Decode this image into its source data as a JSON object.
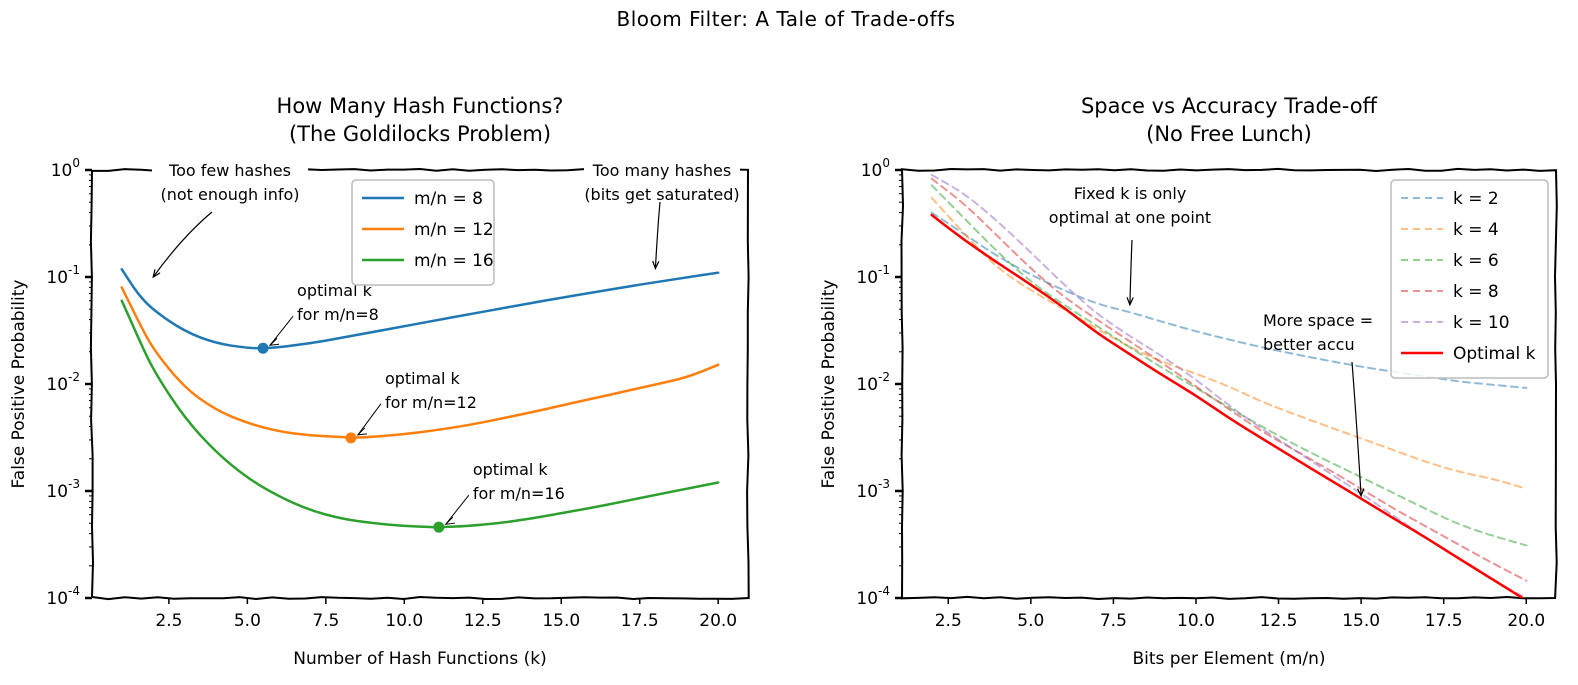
{
  "suptitle": "Bloom Filter: A Tale of Trade-offs",
  "colors": {
    "blue": "#1f77b4",
    "orange": "#ff7f0e",
    "green": "#2ca02c",
    "red": "#ff0000",
    "purple": "#9467bd",
    "k2": "#1f77b4",
    "k4": "#ff7f0e",
    "k6": "#2ca02c",
    "k8": "#d62728",
    "k10": "#9467bd"
  },
  "chart_data": [
    {
      "type": "line",
      "title_line1": "How Many Hash Functions?",
      "title_line2": "(The Goldilocks Problem)",
      "xlabel": "Number of Hash Functions (k)",
      "ylabel": "False Positive Probability",
      "yscale": "log",
      "xlim": [
        0.05,
        20.95
      ],
      "ylim": [
        0.0001,
        1
      ],
      "xticks": [
        2.5,
        5.0,
        7.5,
        10.0,
        12.5,
        15.0,
        17.5,
        20.0
      ],
      "xtick_labels": [
        "2.5",
        "5.0",
        "7.5",
        "10.0",
        "12.5",
        "15.0",
        "17.5",
        "20.0"
      ],
      "yticks": [
        0.0001,
        0.001,
        0.01,
        0.1,
        1
      ],
      "ytick_labels": [
        {
          "base": "10",
          "exp": "-4"
        },
        {
          "base": "10",
          "exp": "-3"
        },
        {
          "base": "10",
          "exp": "-2"
        },
        {
          "base": "10",
          "exp": "-1"
        },
        {
          "base": "10",
          "exp": "0"
        }
      ],
      "legend_position": "upper-center",
      "series": [
        {
          "name": "m/n = 8",
          "color": "#1f77b4",
          "x": [
            1,
            1.5,
            2,
            3,
            4,
            5,
            5.5,
            6,
            7,
            8,
            9,
            10,
            11,
            12,
            13,
            14,
            15,
            16,
            17,
            18,
            19,
            20
          ],
          "y": [
            0.118,
            0.07,
            0.049,
            0.031,
            0.024,
            0.0217,
            0.0216,
            0.022,
            0.024,
            0.027,
            0.0306,
            0.0347,
            0.0393,
            0.0445,
            0.0503,
            0.0568,
            0.0639,
            0.0717,
            0.0802,
            0.0894,
            0.0992,
            0.1098
          ]
        },
        {
          "name": "m/n = 12",
          "color": "#ff7f0e",
          "x": [
            1,
            1.5,
            2,
            3,
            4,
            5,
            6,
            7,
            8,
            8.3,
            9,
            10,
            11,
            12,
            13,
            14,
            15,
            16,
            17,
            18,
            19,
            20
          ],
          "y": [
            0.08,
            0.04,
            0.021,
            0.0092,
            0.0057,
            0.0043,
            0.0036,
            0.0033,
            0.0032,
            0.00314,
            0.0032,
            0.0034,
            0.0037,
            0.0041,
            0.0047,
            0.0054,
            0.0063,
            0.0073,
            0.0085,
            0.0099,
            0.0115,
            0.0151
          ]
        },
        {
          "name": "m/n = 16",
          "color": "#2ca02c",
          "x": [
            1,
            1.5,
            2,
            3,
            4,
            5,
            6,
            7,
            8,
            9,
            10,
            11,
            11.1,
            12,
            13,
            14,
            15,
            16,
            17,
            18,
            19,
            20
          ],
          "y": [
            0.06,
            0.028,
            0.0135,
            0.0048,
            0.0023,
            0.00132,
            0.00089,
            0.00066,
            0.00055,
            0.0005,
            0.00047,
            0.000459,
            0.000459,
            0.00047,
            0.0005,
            0.00055,
            0.00062,
            0.0007,
            0.0008,
            0.00092,
            0.00105,
            0.0012
          ]
        }
      ],
      "optimal_points": [
        {
          "x": 5.5,
          "y": 0.0216,
          "color": "#1f77b4",
          "label_line1": "optimal k",
          "label_line2": "for m/n=8"
        },
        {
          "x": 8.3,
          "y": 0.00314,
          "color": "#ff7f0e",
          "label_line1": "optimal k",
          "label_line2": "for m/n=12"
        },
        {
          "x": 11.1,
          "y": 0.000459,
          "color": "#2ca02c",
          "label_line1": "optimal k",
          "label_line2": "for m/n=16"
        }
      ],
      "annotations": [
        {
          "line1": "Too few hashes",
          "line2": "(not enough info)",
          "target_x": 2,
          "target_y": 0.1
        },
        {
          "line1": "Too many hashes",
          "line2": "(bits get saturated)",
          "target_x": 18,
          "target_y": 0.12
        }
      ]
    },
    {
      "type": "line",
      "title_line1": "Space vs Accuracy Trade-off",
      "title_line2": "(No Free Lunch)",
      "xlabel": "Bits per Element (m/n)",
      "ylabel": "False Positive Probability",
      "yscale": "log",
      "xlim": [
        1.1,
        20.9
      ],
      "ylim": [
        0.0001,
        1
      ],
      "xticks": [
        2.5,
        5.0,
        7.5,
        10.0,
        12.5,
        15.0,
        17.5,
        20.0
      ],
      "xtick_labels": [
        "2.5",
        "5.0",
        "7.5",
        "10.0",
        "12.5",
        "15.0",
        "17.5",
        "20.0"
      ],
      "yticks": [
        0.0001,
        0.001,
        0.01,
        0.1,
        1
      ],
      "ytick_labels": [
        {
          "base": "10",
          "exp": "-4"
        },
        {
          "base": "10",
          "exp": "-3"
        },
        {
          "base": "10",
          "exp": "-2"
        },
        {
          "base": "10",
          "exp": "-1"
        },
        {
          "base": "10",
          "exp": "0"
        }
      ],
      "legend_position": "upper-right",
      "series": [
        {
          "name": "k = 2",
          "color": "#1f77b4",
          "dashed": true,
          "x": [
            2,
            3,
            4,
            5,
            6,
            7,
            8,
            9,
            10,
            11,
            12,
            13,
            14,
            15,
            16,
            17,
            18,
            19,
            20
          ],
          "y": [
            0.4,
            0.25,
            0.155,
            0.105,
            0.075,
            0.056,
            0.047,
            0.038,
            0.031,
            0.026,
            0.022,
            0.019,
            0.0165,
            0.0145,
            0.013,
            0.0117,
            0.0105,
            0.0098,
            0.0092
          ]
        },
        {
          "name": "k = 4",
          "color": "#ff7f0e",
          "dashed": true,
          "x": [
            2,
            3,
            4,
            5,
            6,
            7,
            8,
            9,
            10,
            11,
            12,
            13,
            14,
            15,
            16,
            17,
            18,
            19,
            20
          ],
          "y": [
            0.55,
            0.25,
            0.12,
            0.075,
            0.05,
            0.033,
            0.022,
            0.016,
            0.0125,
            0.0095,
            0.0068,
            0.0052,
            0.004,
            0.0031,
            0.0024,
            0.00185,
            0.0015,
            0.0013,
            0.00105
          ]
        },
        {
          "name": "k = 6",
          "color": "#2ca02c",
          "dashed": true,
          "x": [
            2,
            3,
            4,
            5,
            6,
            7,
            8,
            9,
            10,
            11,
            12,
            13,
            14,
            15,
            16,
            17,
            18,
            19,
            20
          ],
          "y": [
            0.72,
            0.35,
            0.17,
            0.09,
            0.055,
            0.035,
            0.022,
            0.014,
            0.0092,
            0.006,
            0.004,
            0.0027,
            0.0019,
            0.00135,
            0.00095,
            0.00067,
            0.00048,
            0.00038,
            0.00031
          ]
        },
        {
          "name": "k = 8",
          "color": "#d62728",
          "dashed": true,
          "x": [
            2,
            3,
            4,
            5,
            6,
            7,
            8,
            9,
            10,
            11,
            12,
            13,
            14,
            15,
            16,
            17,
            18,
            19,
            20
          ],
          "y": [
            0.83,
            0.48,
            0.24,
            0.12,
            0.065,
            0.04,
            0.025,
            0.0155,
            0.0095,
            0.0058,
            0.0036,
            0.0024,
            0.0016,
            0.00105,
            0.00068,
            0.00046,
            0.00031,
            0.00021,
            0.000145
          ]
        },
        {
          "name": "k = 10",
          "color": "#9467bd",
          "dashed": true,
          "x": [
            2,
            3,
            4,
            5,
            6,
            7,
            8,
            9,
            10,
            11,
            12,
            13,
            14,
            15,
            16,
            17,
            18,
            19,
            20
          ],
          "y": [
            0.9,
            0.6,
            0.33,
            0.17,
            0.085,
            0.045,
            0.028,
            0.018,
            0.011,
            0.0063,
            0.0038,
            0.0024,
            0.0015,
            0.00095,
            0.00058,
            0.00036,
            0.00023,
            0.000145,
            0.0001
          ]
        },
        {
          "name": "Optimal k",
          "color": "#ff0000",
          "dashed": false,
          "x": [
            2,
            3,
            4,
            5,
            6,
            7,
            8,
            9,
            10,
            11,
            12,
            13,
            14,
            15,
            16,
            17,
            18,
            19,
            20
          ],
          "y": [
            0.38,
            0.22,
            0.135,
            0.085,
            0.052,
            0.03,
            0.019,
            0.012,
            0.0078,
            0.0048,
            0.0031,
            0.002,
            0.0013,
            0.00085,
            0.00055,
            0.00036,
            0.00023,
            0.000148,
            9.5e-05
          ]
        }
      ],
      "annotations": [
        {
          "line1": "Fixed k is only",
          "line2": "optimal at one point",
          "target_x": 8,
          "target_y": 0.055
        },
        {
          "line1": "More space =",
          "line2": "better accu",
          "target_x": 15,
          "target_y": 0.0009
        }
      ]
    }
  ]
}
